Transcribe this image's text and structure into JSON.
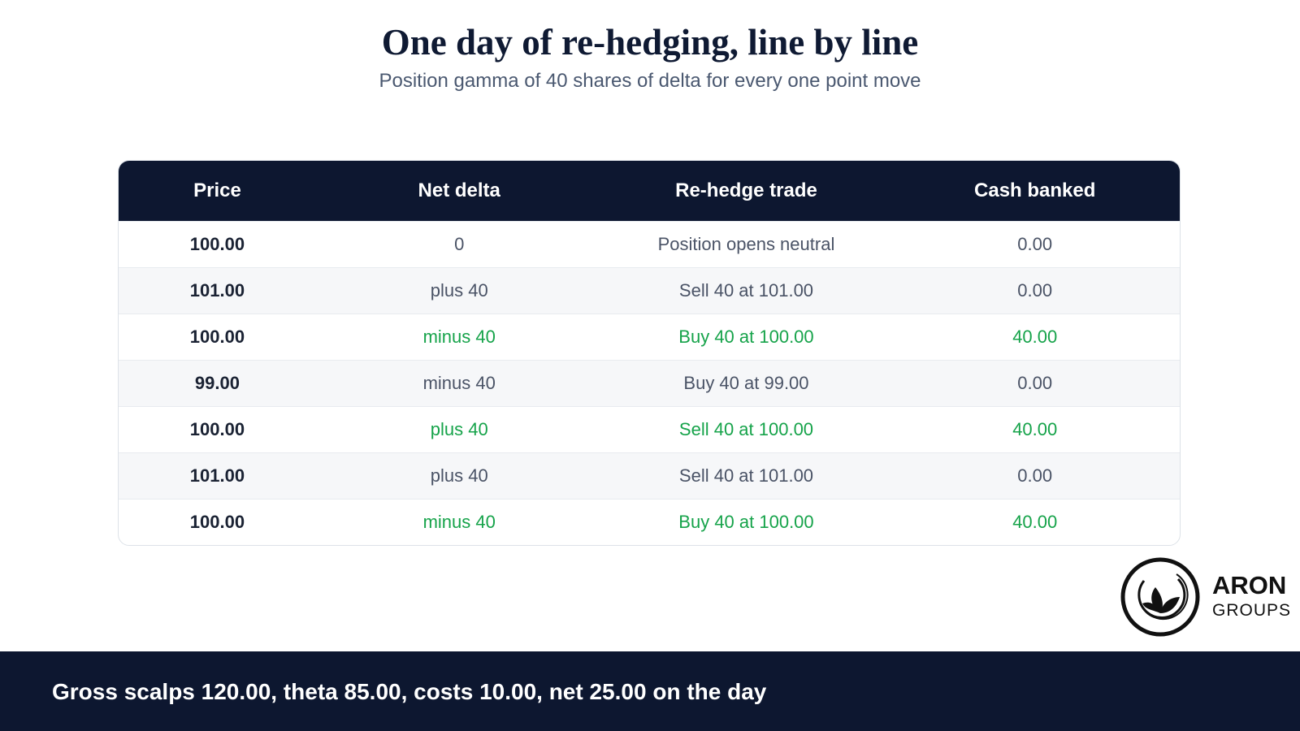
{
  "header": {
    "title": "One day of re-hedging, line by line",
    "subtitle": "Position gamma of 40 shares of delta for every one point move"
  },
  "table": {
    "columns": [
      "Price",
      "Net delta",
      "Re-hedge trade",
      "Cash banked"
    ],
    "rows": [
      [
        "100.00",
        "0",
        "Position opens neutral",
        "0.00"
      ],
      [
        "101.00",
        "plus 40",
        "Sell 40 at 101.00",
        "0.00"
      ],
      [
        "100.00",
        "minus 40",
        "Buy 40 at 100.00",
        "40.00"
      ],
      [
        "99.00",
        "minus 40",
        "Buy 40 at 99.00",
        "0.00"
      ],
      [
        "100.00",
        "plus 40",
        "Sell 40 at 100.00",
        "40.00"
      ],
      [
        "101.00",
        "plus 40",
        "Sell 40 at 101.00",
        "0.00"
      ],
      [
        "100.00",
        "minus 40",
        "Buy 40 at 100.00",
        "40.00"
      ]
    ],
    "highlighted_rows": [
      2,
      4,
      6
    ],
    "highlight_color": "#16a34a"
  },
  "footer": {
    "text": "Gross scalps 120.00, theta 85.00, costs 10.00, net 25.00 on the day"
  },
  "logo": {
    "name": "ARON",
    "sub": "GROUPS"
  }
}
